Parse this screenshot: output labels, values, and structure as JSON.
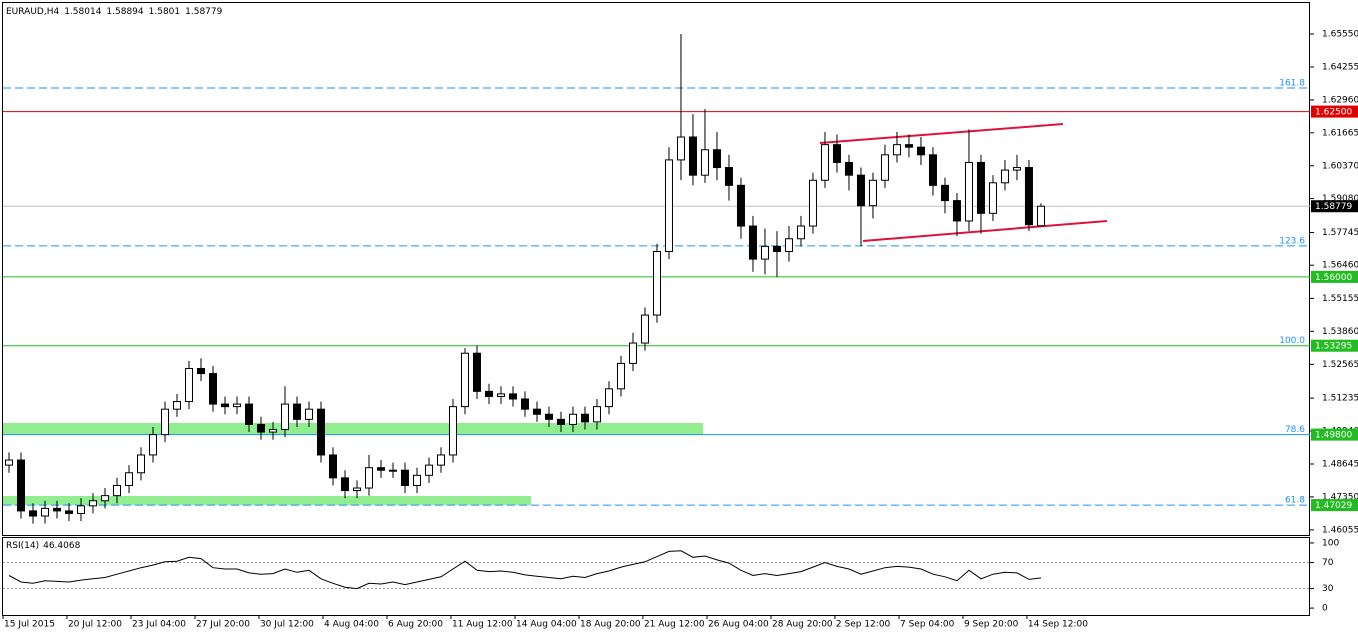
{
  "chart_data": {
    "type": "candlestick",
    "symbol": "EURAUD,H4",
    "xlim": [
      -0.5,
      108.42
    ],
    "ylim": [
      1.45853,
      1.66769
    ],
    "yticks": [
      {
        "value": 1.6555,
        "label": "1.65550"
      },
      {
        "value": 1.64255,
        "label": "1.64255"
      },
      {
        "value": 1.6296,
        "label": "1.62960"
      },
      {
        "value": 1.61665,
        "label": "1.61665"
      },
      {
        "value": 1.6037,
        "label": "1.60370"
      },
      {
        "value": 1.5908,
        "label": "1.59080"
      },
      {
        "value": 1.57745,
        "label": "1.57745"
      },
      {
        "value": 1.5646,
        "label": "1.56460"
      },
      {
        "value": 1.55155,
        "label": "1.55155"
      },
      {
        "value": 1.5386,
        "label": "1.53860"
      },
      {
        "value": 1.52565,
        "label": "1.52565"
      },
      {
        "value": 1.51235,
        "label": "1.51235"
      },
      {
        "value": 1.4994,
        "label": "1.49940"
      },
      {
        "value": 1.48645,
        "label": "1.48645"
      },
      {
        "value": 1.4735,
        "label": "1.47350"
      },
      {
        "value": 1.46055,
        "label": "1.46055"
      }
    ],
    "xticks": [
      {
        "value": -0.5,
        "label": "15 Jul 2015"
      },
      {
        "value": 4.83,
        "label": "20 Jul 12:00"
      },
      {
        "value": 10.17,
        "label": "23 Jul 04:00"
      },
      {
        "value": 15.5,
        "label": "27 Jul 20:00"
      },
      {
        "value": 20.83,
        "label": "30 Jul 12:00"
      },
      {
        "value": 26.17,
        "label": "4 Aug 04:00"
      },
      {
        "value": 31.5,
        "label": "6 Aug 20:00"
      },
      {
        "value": 36.83,
        "label": "11 Aug 12:00"
      },
      {
        "value": 42.17,
        "label": "14 Aug 04:00"
      },
      {
        "value": 47.5,
        "label": "18 Aug 20:00"
      },
      {
        "value": 52.83,
        "label": "21 Aug 12:00"
      },
      {
        "value": 58.17,
        "label": "26 Aug 04:00"
      },
      {
        "value": 63.5,
        "label": "28 Aug 20:00"
      },
      {
        "value": 68.83,
        "label": "2 Sep 12:00"
      },
      {
        "value": 74.17,
        "label": "7 Sep 04:00"
      },
      {
        "value": 79.5,
        "label": "9 Sep 20:00"
      },
      {
        "value": 84.83,
        "label": "14 Sep 12:00"
      }
    ],
    "open": [
      1.486,
      1.488,
      1.468,
      1.466,
      1.469,
      1.468,
      1.467,
      1.47,
      1.472,
      1.474,
      1.478,
      1.483,
      1.49,
      1.498,
      1.508,
      1.511,
      1.524,
      1.522,
      1.51,
      1.509,
      1.51,
      1.502,
      1.499,
      1.5,
      1.51,
      1.504,
      1.508,
      1.49,
      1.481,
      1.476,
      1.477,
      1.485,
      1.484,
      1.484,
      1.478,
      1.482,
      1.486,
      1.49,
      1.509,
      1.53,
      1.515,
      1.513,
      1.514,
      1.512,
      1.508,
      1.506,
      1.504,
      1.502,
      1.506,
      1.503,
      1.509,
      1.516,
      1.526,
      1.534,
      1.545,
      1.57,
      1.606,
      1.615,
      1.6,
      1.61,
      1.603,
      1.596,
      1.58,
      1.567,
      1.572,
      1.57,
      1.575,
      1.58,
      1.598,
      1.612,
      1.605,
      1.6,
      1.588,
      1.598,
      1.608,
      1.612,
      1.611,
      1.608,
      1.596,
      1.59,
      1.582,
      1.605,
      1.585,
      1.597,
      1.602,
      1.603,
      1.58014
    ],
    "high": [
      1.491,
      1.491,
      1.471,
      1.472,
      1.472,
      1.471,
      1.473,
      1.475,
      1.477,
      1.481,
      1.486,
      1.493,
      1.501,
      1.511,
      1.514,
      1.527,
      1.528,
      1.525,
      1.513,
      1.513,
      1.513,
      1.505,
      1.503,
      1.517,
      1.513,
      1.511,
      1.511,
      1.493,
      1.484,
      1.48,
      1.49,
      1.488,
      1.487,
      1.487,
      1.485,
      1.489,
      1.493,
      1.512,
      1.532,
      1.533,
      1.518,
      1.517,
      1.517,
      1.515,
      1.511,
      1.509,
      1.507,
      1.509,
      1.509,
      1.512,
      1.519,
      1.529,
      1.538,
      1.548,
      1.573,
      1.611,
      1.6555,
      1.624,
      1.626,
      1.617,
      1.608,
      1.599,
      1.584,
      1.579,
      1.578,
      1.58,
      1.584,
      1.601,
      1.617,
      1.616,
      1.608,
      1.603,
      1.601,
      1.612,
      1.617,
      1.616,
      1.615,
      1.611,
      1.599,
      1.593,
      1.618,
      1.608,
      1.6,
      1.606,
      1.608,
      1.606,
      1.58894
    ],
    "low": [
      1.483,
      1.465,
      1.463,
      1.463,
      1.465,
      1.464,
      1.464,
      1.467,
      1.469,
      1.471,
      1.475,
      1.48,
      1.487,
      1.495,
      1.505,
      1.508,
      1.519,
      1.507,
      1.506,
      1.506,
      1.499,
      1.496,
      1.496,
      1.497,
      1.501,
      1.501,
      1.487,
      1.478,
      1.473,
      1.473,
      1.474,
      1.481,
      1.481,
      1.475,
      1.475,
      1.479,
      1.483,
      1.487,
      1.506,
      1.512,
      1.51,
      1.51,
      1.509,
      1.505,
      1.503,
      1.501,
      1.499,
      1.499,
      1.5,
      1.5,
      1.506,
      1.513,
      1.523,
      1.531,
      1.542,
      1.567,
      1.598,
      1.596,
      1.597,
      1.598,
      1.59,
      1.575,
      1.562,
      1.561,
      1.56,
      1.566,
      1.572,
      1.577,
      1.595,
      1.601,
      1.594,
      1.572,
      1.583,
      1.595,
      1.605,
      1.607,
      1.604,
      1.592,
      1.585,
      1.576,
      1.578,
      1.577,
      1.582,
      1.594,
      1.598,
      1.578,
      1.5801
    ],
    "close": [
      1.488,
      1.468,
      1.466,
      1.469,
      1.468,
      1.467,
      1.47,
      1.472,
      1.474,
      1.478,
      1.483,
      1.49,
      1.498,
      1.508,
      1.511,
      1.524,
      1.522,
      1.51,
      1.509,
      1.51,
      1.502,
      1.499,
      1.5,
      1.51,
      1.504,
      1.508,
      1.49,
      1.481,
      1.476,
      1.477,
      1.485,
      1.484,
      1.484,
      1.478,
      1.482,
      1.486,
      1.49,
      1.509,
      1.53,
      1.515,
      1.513,
      1.514,
      1.512,
      1.508,
      1.506,
      1.504,
      1.502,
      1.506,
      1.503,
      1.509,
      1.516,
      1.526,
      1.534,
      1.545,
      1.57,
      1.606,
      1.615,
      1.6,
      1.61,
      1.603,
      1.596,
      1.58,
      1.567,
      1.572,
      1.57,
      1.575,
      1.58,
      1.598,
      1.612,
      1.605,
      1.6,
      1.588,
      1.598,
      1.608,
      1.612,
      1.611,
      1.608,
      1.596,
      1.59,
      1.582,
      1.605,
      1.585,
      1.597,
      1.602,
      1.603,
      1.5805,
      1.58779
    ],
    "last_price": {
      "color": "#c0c0c0",
      "box": "#000000"
    },
    "levels": [
      {
        "value": 1.63427,
        "fib": "161.8",
        "color": "#1e90ff",
        "dash": true
      },
      {
        "value": 1.625,
        "label": "1.62500",
        "color": "#e00000",
        "box": "#e00000"
      },
      {
        "value": 1.5722,
        "fib": "123.6",
        "color": "#1e90ff",
        "dash": true
      },
      {
        "value": 1.56,
        "label": "1.56000",
        "color": "#22bb22",
        "box": "#22bb22"
      },
      {
        "value": 1.53295,
        "fib": "100.0",
        "label": "1.53295",
        "color": "#22bb22",
        "box": "#22bb22"
      },
      {
        "value": 1.498,
        "fib": "78.6",
        "label": "1.49800",
        "color": "#1e90ff",
        "box": "#22bb22"
      },
      {
        "value": 1.47029,
        "fib": "61.8",
        "label": "1.47029",
        "color": "#1e90ff",
        "dash": true,
        "box": "#22bb22"
      }
    ],
    "fib_color": "#1e90ff",
    "zones": [
      {
        "xlim": [
          -0.5,
          57.83
        ],
        "ylim": [
          1.498,
          1.50257
        ],
        "color": "#90ee90"
      },
      {
        "xlim": [
          -0.5,
          43.5
        ],
        "ylim": [
          1.4703,
          1.47387
        ],
        "color": "#90ee90"
      }
    ],
    "trendlines": [
      {
        "x": [
          67.58,
          87.83
        ],
        "y": [
          1.61265,
          1.6201
        ],
        "color": "#dc143c"
      },
      {
        "x": [
          71.17,
          91.5
        ],
        "y": [
          1.57412,
          1.582
        ],
        "color": "#dc143c"
      }
    ],
    "rsi": {
      "name": "RSI(14)",
      "ylim": [
        -10.6,
        107.6
      ],
      "yticks": [
        0,
        30,
        70,
        100
      ],
      "dotted": [
        30,
        70
      ],
      "values": [
        50,
        40,
        38,
        42,
        41,
        40,
        43,
        45,
        47,
        52,
        57,
        62,
        66,
        71,
        72,
        78,
        76,
        62,
        60,
        60,
        54,
        52,
        53,
        60,
        55,
        58,
        45,
        38,
        32,
        30,
        38,
        37,
        40,
        36,
        40,
        44,
        48,
        60,
        72,
        58,
        56,
        57,
        55,
        51,
        49,
        47,
        45,
        49,
        47,
        53,
        57,
        63,
        67,
        71,
        79,
        87,
        88,
        78,
        80,
        74,
        69,
        58,
        50,
        53,
        50,
        53,
        56,
        63,
        70,
        64,
        60,
        52,
        57,
        62,
        64,
        63,
        60,
        52,
        48,
        42,
        58,
        45,
        52,
        55,
        54,
        44,
        46.4068
      ]
    }
  }
}
